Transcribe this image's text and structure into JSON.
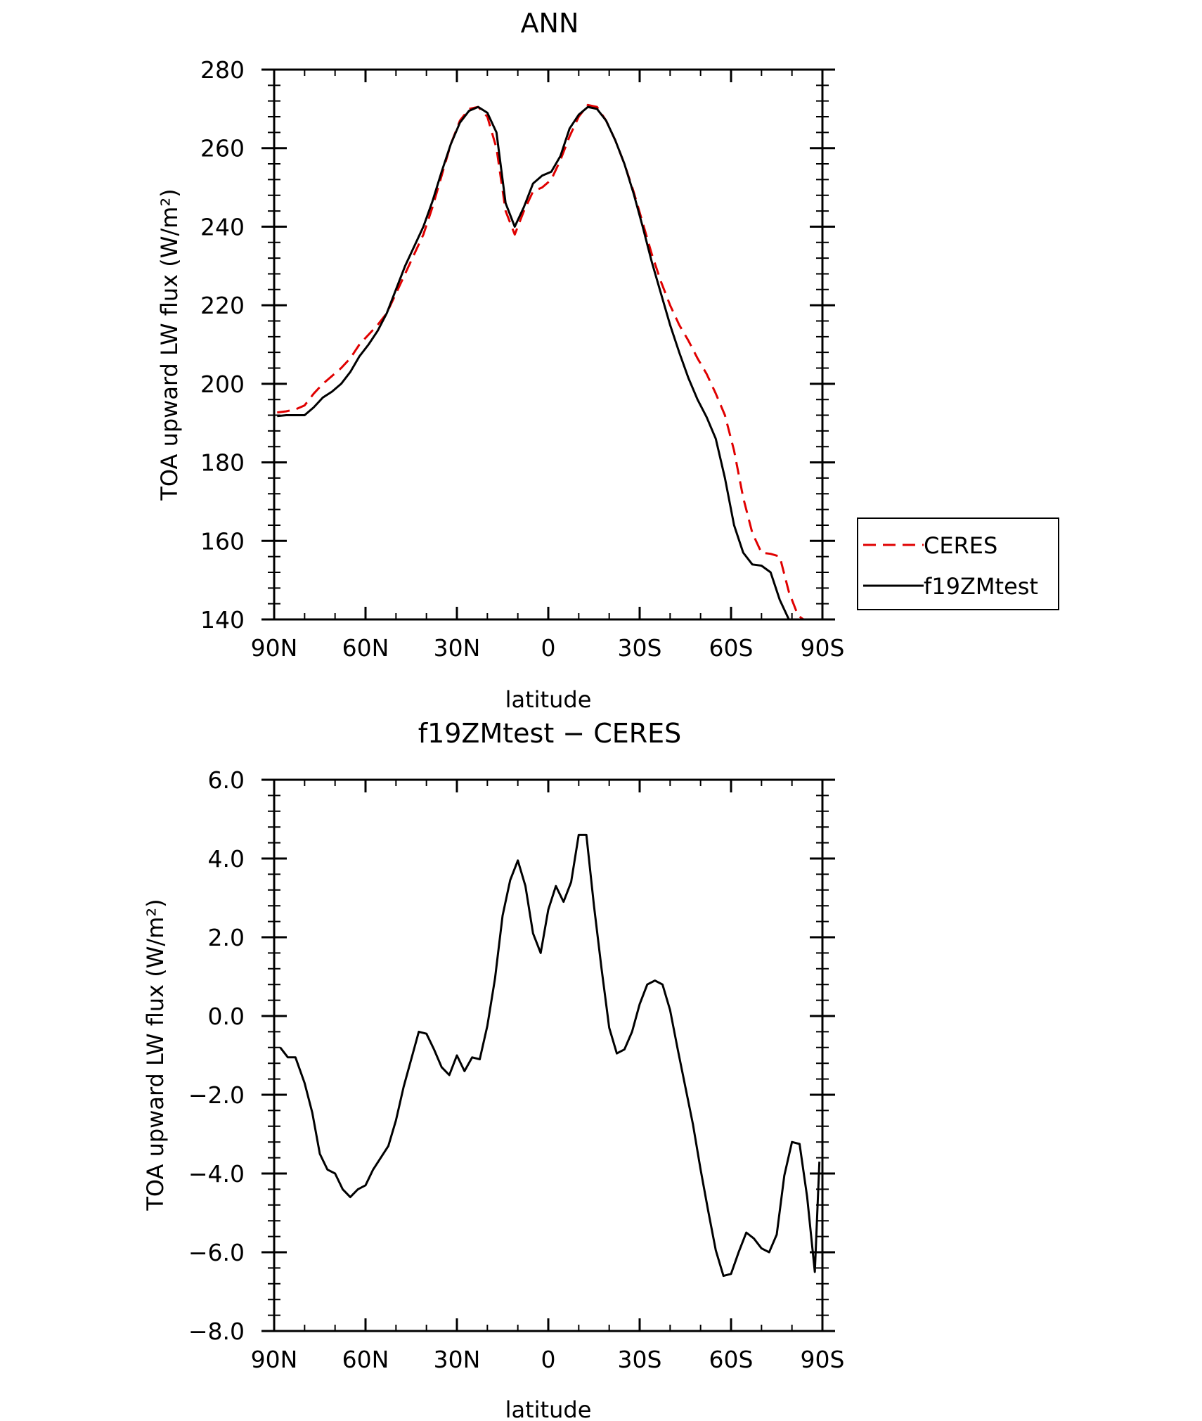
{
  "chart_data": [
    {
      "type": "line",
      "title": "ANN",
      "xlabel": "latitude",
      "ylabel": "TOA upward LW flux (W/m²)",
      "xlim": [
        90,
        -90
      ],
      "ylim": [
        140,
        280
      ],
      "xticks": [
        90,
        60,
        30,
        0,
        -30,
        -60,
        -90
      ],
      "xtick_labels": [
        "90N",
        "60N",
        "30N",
        "0",
        "30S",
        "60S",
        "90S"
      ],
      "yticks": [
        140,
        160,
        180,
        200,
        220,
        240,
        260,
        280
      ],
      "ytick_labels": [
        "140",
        "160",
        "180",
        "200",
        "220",
        "240",
        "260",
        "280"
      ],
      "grid": false,
      "legend_position": "right",
      "series": [
        {
          "name": "CERES",
          "color": "#e00000",
          "dash": "dashed",
          "x": [
            89,
            86,
            83,
            80,
            77,
            74,
            71,
            68,
            65,
            62,
            59,
            56,
            53,
            50,
            47,
            44,
            41,
            38,
            35,
            32,
            29,
            26,
            23,
            20,
            17,
            14,
            11,
            8,
            5,
            2,
            -1,
            -4,
            -7,
            -10,
            -13,
            -16,
            -19,
            -22,
            -25,
            -28,
            -31,
            -34,
            -37,
            -40,
            -43,
            -46,
            -49,
            -52,
            -55,
            -58,
            -61,
            -64,
            -67,
            -70,
            -73,
            -76,
            -79,
            -82,
            -85,
            -89
          ],
          "y": [
            192.7,
            193,
            193.5,
            194.5,
            197.5,
            200,
            202,
            204,
            206.5,
            210,
            212.5,
            215,
            218,
            223,
            228,
            233,
            238,
            245,
            253,
            261,
            267,
            270,
            270.5,
            268,
            260,
            244,
            238,
            244,
            249,
            250,
            252,
            257,
            263,
            268,
            271,
            270.5,
            267,
            262,
            256,
            249,
            241,
            233,
            226,
            220,
            215,
            211,
            206.5,
            202.5,
            197.5,
            192,
            183,
            171,
            162,
            157,
            156.7,
            156,
            147,
            141,
            139.3,
            138
          ]
        },
        {
          "name": "f19ZMtest",
          "color": "#000000",
          "dash": "solid",
          "x": [
            89,
            86,
            83,
            80,
            77,
            74,
            71,
            68,
            65,
            62,
            59,
            56,
            53,
            50,
            47,
            44,
            41,
            38,
            35,
            32,
            29,
            26,
            23,
            20,
            17,
            14,
            11,
            8,
            5,
            2,
            -1,
            -4,
            -7,
            -10,
            -13,
            -16,
            -19,
            -22,
            -25,
            -28,
            -31,
            -34,
            -37,
            -40,
            -43,
            -46,
            -49,
            -52,
            -55,
            -58,
            -61,
            -64,
            -67,
            -70,
            -73,
            -76,
            -79,
            -82,
            -85,
            -89
          ],
          "y": [
            191.8,
            192,
            192,
            192,
            194,
            196.5,
            198,
            200,
            203,
            207,
            210,
            213.5,
            218,
            224,
            230,
            235,
            240,
            246.5,
            254,
            261,
            266.5,
            269.5,
            270.5,
            269,
            264,
            246,
            240,
            245,
            251,
            253,
            254,
            258,
            265,
            268.5,
            270.5,
            270,
            267,
            262,
            256,
            248.5,
            240,
            231,
            223,
            215,
            208,
            201.5,
            196,
            191.5,
            186,
            176,
            164,
            157,
            154,
            153.7,
            152,
            145,
            140,
            138,
            137,
            135
          ]
        }
      ]
    },
    {
      "type": "line",
      "title": "f19ZMtest − CERES",
      "xlabel": "latitude",
      "ylabel": "TOA upward LW flux (W/m²)",
      "xlim": [
        90,
        -90
      ],
      "ylim": [
        -8,
        6
      ],
      "xticks": [
        90,
        60,
        30,
        0,
        -30,
        -60,
        -90
      ],
      "xtick_labels": [
        "90N",
        "60N",
        "30N",
        "0",
        "30S",
        "60S",
        "90S"
      ],
      "yticks": [
        -8,
        -6,
        -4,
        -2,
        0,
        2,
        4,
        6
      ],
      "ytick_labels": [
        "−8.0",
        "−6.0",
        "−4.0",
        "−2.0",
        "0.0",
        "2.0",
        "4.0",
        "6.0"
      ],
      "grid": false,
      "series": [
        {
          "color": "#000000",
          "dash": "solid",
          "x": [
            88,
            85.5,
            83,
            80,
            77.5,
            75,
            72.5,
            70,
            67.5,
            65,
            62.5,
            60,
            57.5,
            55,
            52.5,
            50,
            47.5,
            45,
            42.5,
            40,
            37.5,
            35,
            32.5,
            30,
            27.5,
            25,
            22.5,
            20,
            17.5,
            15,
            12.5,
            10,
            7.5,
            5,
            2.5,
            0,
            -2.5,
            -5,
            -7.5,
            -10,
            -12.5,
            -15,
            -17.5,
            -20,
            -22.5,
            -25,
            -27.5,
            -30,
            -32.5,
            -35,
            -37.5,
            -40,
            -42.5,
            -45,
            -47.5,
            -50,
            -52.5,
            -55,
            -57.5,
            -60,
            -62.5,
            -65,
            -67.5,
            -70,
            -72.5,
            -75,
            -77.5,
            -80,
            -82.5,
            -85,
            -87.5,
            -89
          ],
          "y": [
            -0.8,
            -1.05,
            -1.05,
            -1.7,
            -2.45,
            -3.5,
            -3.9,
            -4.0,
            -4.4,
            -4.6,
            -4.4,
            -4.3,
            -3.9,
            -3.6,
            -3.3,
            -2.65,
            -1.8,
            -1.1,
            -0.4,
            -0.45,
            -0.85,
            -1.3,
            -1.5,
            -1.0,
            -1.4,
            -1.05,
            -1.1,
            -0.25,
            0.95,
            2.55,
            3.45,
            3.95,
            3.3,
            2.1,
            1.6,
            2.7,
            3.3,
            2.9,
            3.4,
            4.6,
            4.6,
            2.8,
            1.2,
            -0.3,
            -0.95,
            -0.85,
            -0.4,
            0.3,
            0.8,
            0.9,
            0.8,
            0.15,
            -0.85,
            -1.8,
            -2.75,
            -3.9,
            -4.95,
            -5.95,
            -6.6,
            -6.55,
            -6.0,
            -5.5,
            -5.65,
            -5.9,
            -6.0,
            -5.55,
            -4.05,
            -3.2,
            -3.25,
            -4.6,
            -6.5,
            -3.7
          ]
        }
      ]
    }
  ]
}
